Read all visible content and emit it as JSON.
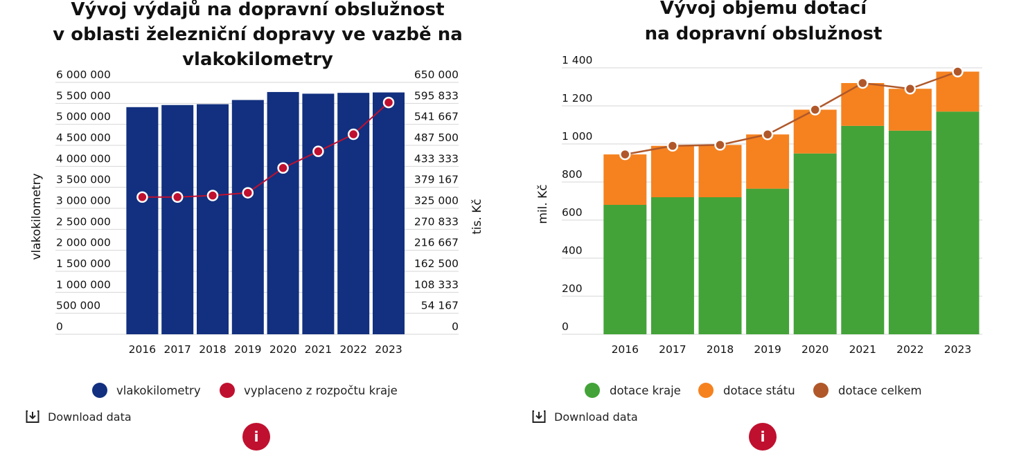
{
  "chart_data": [
    {
      "type": "bar",
      "title": [
        "Vývoj výdajů na dopravní obslužnost",
        "v oblasti železniční dopravy ve vazbě na",
        "vlakokilometry"
      ],
      "categories": [
        "2016",
        "2017",
        "2018",
        "2019",
        "2020",
        "2021",
        "2022",
        "2023"
      ],
      "ylabel": "vlakokilometry",
      "y2label": "tis. Kč",
      "ylim": [
        0,
        6000000
      ],
      "y2lim": [
        0,
        650000
      ],
      "yticks": [
        "0",
        "500 000",
        "1 000 000",
        "1 500 000",
        "2 000 000",
        "2 500 000",
        "3 000 000",
        "3 500 000",
        "4 000 000",
        "4 500 000",
        "5 000 000",
        "5 500 000",
        "6 000 000"
      ],
      "y2ticks": [
        "0",
        "54 167",
        "108 333",
        "162 500",
        "216 667",
        "270 833",
        "325 000",
        "379 167",
        "433 333",
        "487 500",
        "541 667",
        "595 833",
        "650 000"
      ],
      "series": [
        {
          "name": "vlakokilometry",
          "type": "bar",
          "axis": "left",
          "color": "#12307f",
          "values": [
            5410000,
            5460000,
            5480000,
            5580000,
            5770000,
            5730000,
            5750000,
            5760000
          ]
        },
        {
          "name": "vyplaceno z rozpočtu kraje",
          "type": "line",
          "axis": "right",
          "color": "#c0102f",
          "values": [
            354000,
            354000,
            358000,
            365000,
            429000,
            472000,
            516000,
            598000
          ]
        }
      ],
      "grid": true,
      "legend": "bottom"
    },
    {
      "type": "bar",
      "stacked": true,
      "title": [
        "Vývoj objemu dotací",
        "na dopravní obslužnost"
      ],
      "categories": [
        "2016",
        "2017",
        "2018",
        "2019",
        "2020",
        "2021",
        "2022",
        "2023"
      ],
      "ylabel": "mil. Kč",
      "ylim": [
        0,
        1400
      ],
      "yticks": [
        "0",
        "200",
        "400",
        "600",
        "800",
        "1 000",
        "1 200",
        "1 400"
      ],
      "series": [
        {
          "name": "dotace kraje",
          "type": "bar",
          "color": "#43a338",
          "values": [
            680,
            720,
            720,
            765,
            950,
            1095,
            1070,
            1170
          ]
        },
        {
          "name": "dotace státu",
          "type": "bar",
          "color": "#f5821f",
          "values": [
            265,
            270,
            275,
            285,
            230,
            225,
            220,
            210
          ]
        },
        {
          "name": "dotace celkem",
          "type": "line",
          "color": "#b0582a",
          "values": [
            945,
            990,
            995,
            1050,
            1180,
            1320,
            1290,
            1380
          ]
        }
      ],
      "grid": true,
      "legend": "bottom"
    }
  ],
  "ui": {
    "download_label": "Download data",
    "info_label": "i",
    "download_icon": "download-icon",
    "info_icon": "info-icon",
    "accent": "#c0102f"
  }
}
